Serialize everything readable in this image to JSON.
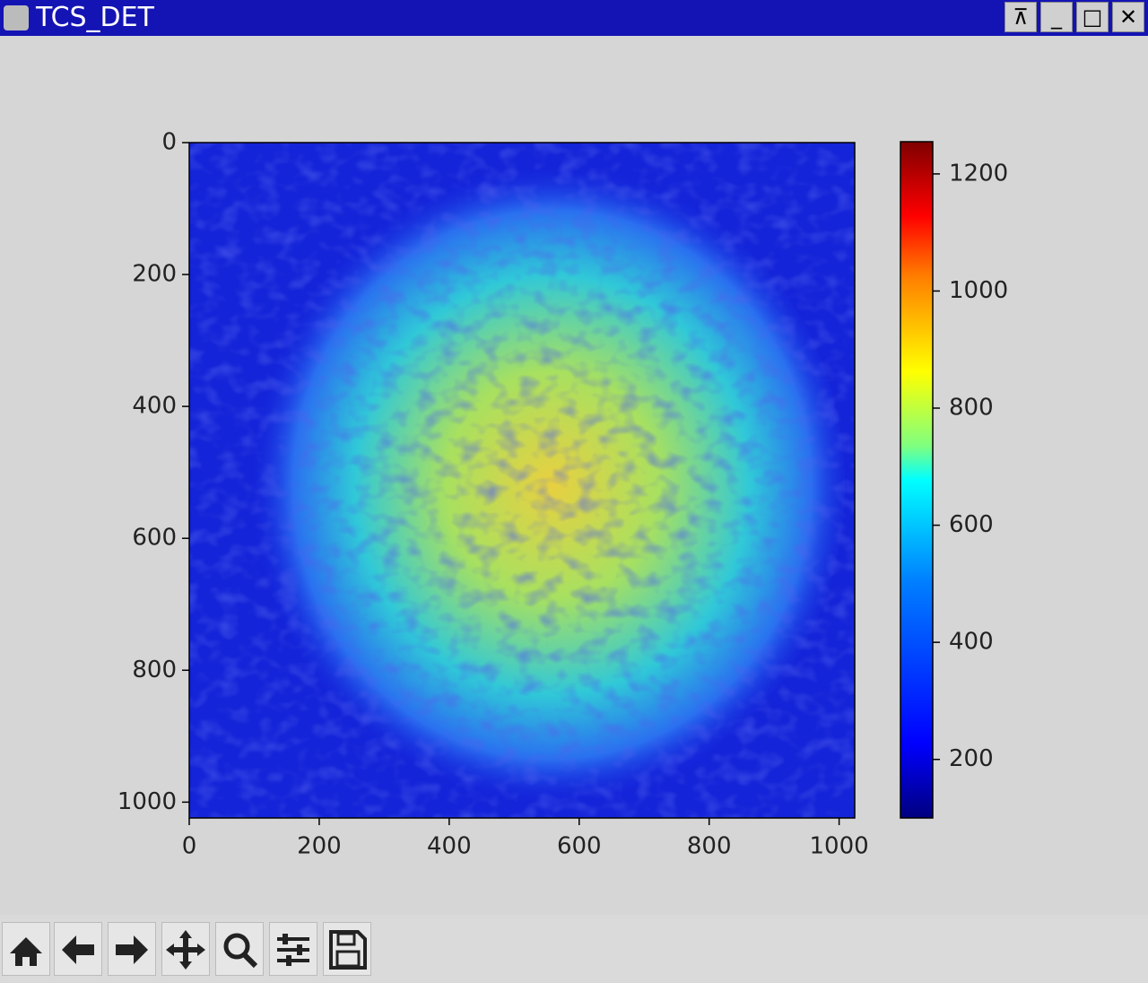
{
  "window": {
    "title": "TCS_DET"
  },
  "chart_data": {
    "type": "image",
    "xlim": [
      0,
      1024
    ],
    "ylim": [
      1024,
      0
    ],
    "xticks": [
      0,
      200,
      400,
      600,
      800,
      1000
    ],
    "yticks": [
      0,
      200,
      400,
      600,
      800,
      1000
    ],
    "colorbar": {
      "colormap": "jet",
      "clim": [
        100,
        1255
      ],
      "ticks": [
        200,
        400,
        600,
        800,
        1000,
        1200
      ]
    }
  }
}
